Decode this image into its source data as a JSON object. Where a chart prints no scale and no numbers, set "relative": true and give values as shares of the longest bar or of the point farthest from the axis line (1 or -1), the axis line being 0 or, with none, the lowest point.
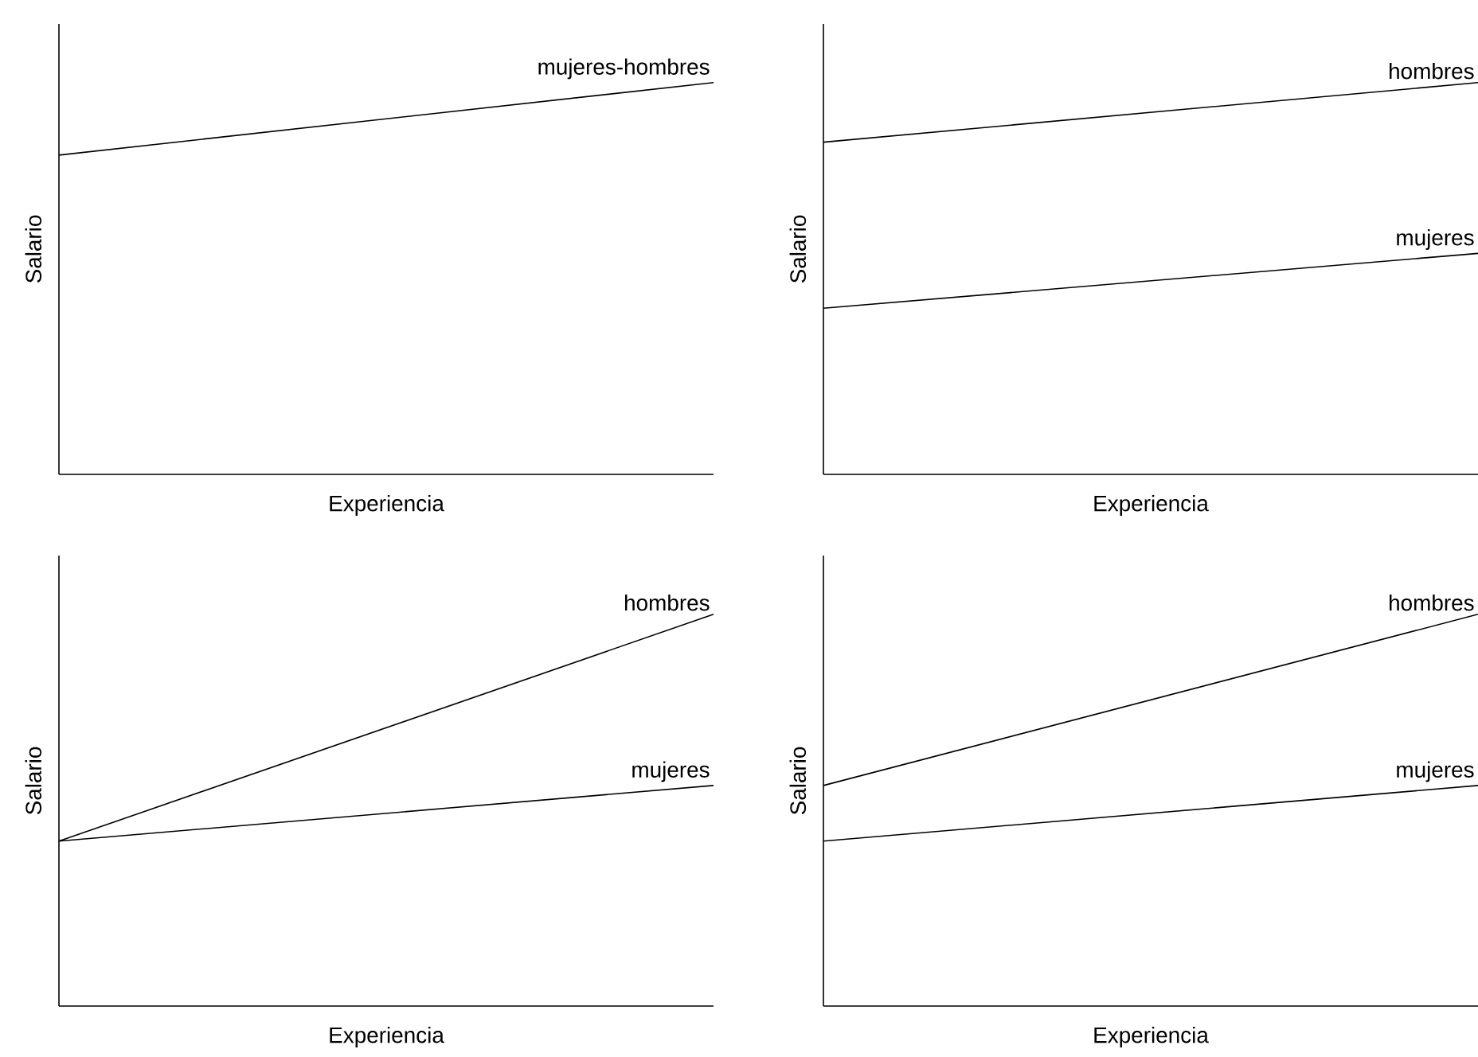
{
  "chart_data": [
    {
      "type": "line",
      "xlabel": "Experiencia",
      "ylabel": "Salario",
      "categories": [
        null,
        null
      ],
      "relative": true,
      "series": [
        {
          "name": "mujeres-hombres",
          "color": "#000000",
          "values": [
            0.815,
            1
          ]
        }
      ]
    },
    {
      "type": "line",
      "xlabel": "Experiencia",
      "ylabel": "Salario",
      "categories": [
        null,
        null
      ],
      "relative": true,
      "series": [
        {
          "name": "hombres",
          "color": "#000000",
          "values": [
            0.848,
            1
          ]
        },
        {
          "name": "mujeres",
          "color": "#000000",
          "values": [
            0.424,
            0.564
          ]
        }
      ]
    },
    {
      "type": "line",
      "xlabel": "Experiencia",
      "ylabel": "Salario",
      "categories": [
        null,
        null
      ],
      "relative": true,
      "series": [
        {
          "name": "hombres",
          "color": "#000000",
          "values": [
            0.421,
            1
          ]
        },
        {
          "name": "mujeres",
          "color": "#000000",
          "values": [
            0.421,
            0.563
          ]
        }
      ]
    },
    {
      "type": "line",
      "xlabel": "Experiencia",
      "ylabel": "Salario",
      "categories": [
        null,
        null
      ],
      "relative": true,
      "series": [
        {
          "name": "hombres",
          "color": "#000000",
          "values": [
            0.563,
            1
          ]
        },
        {
          "name": "mujeres",
          "color": "#000000",
          "values": [
            0.421,
            0.563
          ]
        }
      ]
    }
  ]
}
